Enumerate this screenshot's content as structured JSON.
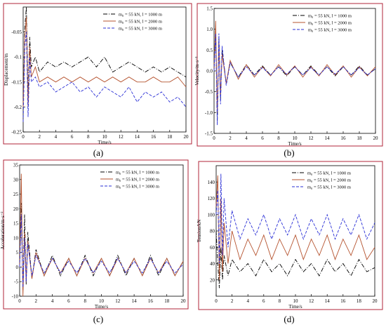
{
  "figure": {
    "panels": [
      "(a)",
      "(b)",
      "(c)",
      "(d)"
    ]
  },
  "colors": {
    "series_1000": "#000000",
    "series_2000": "#b5532f",
    "series_3000": "#2a2fd6",
    "frame": "#b0243a"
  },
  "chart_data": [
    {
      "type": "line",
      "panel": "(a)",
      "xlabel": "Time/s",
      "ylabel": "Displacement/m",
      "xlim": [
        0,
        20
      ],
      "ylim": [
        -0.25,
        0
      ],
      "xticks": [
        0,
        2,
        4,
        6,
        8,
        10,
        12,
        14,
        16,
        18,
        20
      ],
      "yticks": [
        -0.25,
        -0.2,
        -0.15,
        -0.1,
        -0.05
      ],
      "ytick_labels": [
        "-0.25",
        "-0.2",
        "-0.15",
        "-0.1",
        "-0.05"
      ],
      "legend_position": "top-right",
      "series": [
        {
          "name": "m₀ = 55 kN, l = 1000 m",
          "style": "dashdot",
          "color": "#000000",
          "x": [
            0,
            0.2,
            0.4,
            0.6,
            0.8,
            1,
            1.5,
            2,
            3,
            4,
            5,
            6,
            7,
            8,
            9,
            10,
            11,
            12,
            13,
            14,
            15,
            16,
            17,
            18,
            19,
            20
          ],
          "y": [
            -0.2,
            -0.04,
            0,
            -0.18,
            -0.06,
            -0.12,
            -0.1,
            -0.13,
            -0.11,
            -0.12,
            -0.11,
            -0.12,
            -0.11,
            -0.1,
            -0.12,
            -0.1,
            -0.13,
            -0.12,
            -0.11,
            -0.12,
            -0.13,
            -0.12,
            -0.13,
            -0.12,
            -0.13,
            -0.14
          ]
        },
        {
          "name": "m₀ = 55 kN, l = 2000 m",
          "style": "solid",
          "color": "#b5532f",
          "x": [
            0,
            0.2,
            0.4,
            0.6,
            0.8,
            1,
            1.5,
            2,
            3,
            4,
            5,
            6,
            7,
            8,
            9,
            10,
            11,
            12,
            13,
            14,
            15,
            16,
            17,
            18,
            19,
            20
          ],
          "y": [
            -0.2,
            -0.06,
            -0.02,
            -0.2,
            -0.08,
            -0.14,
            -0.12,
            -0.15,
            -0.14,
            -0.15,
            -0.14,
            -0.15,
            -0.14,
            -0.15,
            -0.14,
            -0.15,
            -0.14,
            -0.15,
            -0.14,
            -0.15,
            -0.15,
            -0.14,
            -0.15,
            -0.15,
            -0.14,
            -0.16
          ]
        },
        {
          "name": "m₀ = 55 kN, l = 3000 m",
          "style": "dashed",
          "color": "#2a2fd6",
          "x": [
            0,
            0.2,
            0.4,
            0.6,
            0.8,
            1,
            1.5,
            2,
            3,
            4,
            5,
            6,
            7,
            8,
            9,
            10,
            11,
            12,
            13,
            14,
            15,
            16,
            17,
            18,
            19,
            20
          ],
          "y": [
            -0.23,
            -0.08,
            -0.05,
            -0.22,
            -0.1,
            -0.15,
            -0.14,
            -0.16,
            -0.15,
            -0.17,
            -0.16,
            -0.15,
            -0.17,
            -0.16,
            -0.18,
            -0.16,
            -0.17,
            -0.18,
            -0.16,
            -0.19,
            -0.17,
            -0.18,
            -0.17,
            -0.19,
            -0.18,
            -0.2
          ]
        }
      ]
    },
    {
      "type": "line",
      "panel": "(b)",
      "xlabel": "Time/s",
      "ylabel": "Velocity/m·s⁻¹",
      "xlim": [
        0,
        20
      ],
      "ylim": [
        -1.5,
        1.5
      ],
      "xticks": [
        0,
        2,
        4,
        6,
        8,
        10,
        12,
        14,
        16,
        18,
        20
      ],
      "yticks": [
        -1.5,
        -1.0,
        -0.5,
        0.0,
        0.5,
        1.0,
        1.5
      ],
      "ytick_labels": [
        "-1.5",
        "-1.0",
        "-0.5",
        "0.0",
        "0.5",
        "1.0",
        "1.5"
      ],
      "legend_position": "top-right",
      "series": [
        {
          "name": "m₀ = 55 kN, l = 1000 m",
          "style": "dashdot",
          "color": "#000000",
          "x": [
            0,
            0.2,
            0.4,
            0.6,
            0.8,
            1,
            1.5,
            2,
            3,
            4,
            5,
            6,
            7,
            8,
            9,
            10,
            11,
            12,
            13,
            14,
            15,
            16,
            17,
            18,
            19,
            20
          ],
          "y": [
            0,
            1.0,
            -1.2,
            0.8,
            -0.7,
            0.5,
            -0.3,
            0.2,
            -0.15,
            0.15,
            -0.1,
            0.12,
            -0.1,
            0.1,
            -0.12,
            0.1,
            -0.1,
            0.12,
            -0.1,
            0.1,
            -0.12,
            0.1,
            -0.1,
            0.12,
            -0.1,
            0.05
          ]
        },
        {
          "name": "m₀ = 55 kN, l = 2000 m",
          "style": "solid",
          "color": "#b5532f",
          "x": [
            0,
            0.2,
            0.4,
            0.6,
            0.8,
            1,
            1.5,
            2,
            3,
            4,
            5,
            6,
            7,
            8,
            9,
            10,
            11,
            12,
            13,
            14,
            15,
            16,
            17,
            18,
            19,
            20
          ],
          "y": [
            0,
            1.2,
            -1.0,
            0.7,
            -0.6,
            0.4,
            -0.3,
            0.25,
            -0.2,
            0.15,
            -0.15,
            0.1,
            -0.12,
            0.15,
            -0.1,
            0.12,
            -0.15,
            0.1,
            -0.12,
            0.15,
            -0.1,
            0.12,
            -0.15,
            0.1,
            -0.12,
            0.1
          ]
        },
        {
          "name": "m₀ = 55 kN, l = 3000 m",
          "style": "dashed",
          "color": "#2a2fd6",
          "x": [
            0,
            0.2,
            0.4,
            0.6,
            0.8,
            1,
            1.5,
            2,
            3,
            4,
            5,
            6,
            7,
            8,
            9,
            10,
            11,
            12,
            13,
            14,
            15,
            16,
            17,
            18,
            19,
            20
          ],
          "y": [
            0,
            0.9,
            -1.3,
            0.9,
            -0.8,
            0.6,
            -0.35,
            0.2,
            -0.15,
            0.1,
            -0.1,
            0.08,
            -0.1,
            0.1,
            -0.08,
            0.1,
            -0.1,
            0.08,
            -0.1,
            0.1,
            -0.08,
            0.1,
            -0.1,
            0.08,
            -0.1,
            0.05
          ]
        }
      ]
    },
    {
      "type": "line",
      "panel": "(c)",
      "xlabel": "Time/s",
      "ylabel": "Acceleration/m·s⁻²",
      "xlim": [
        0,
        20
      ],
      "ylim": [
        -10,
        35
      ],
      "xticks": [
        0,
        2,
        4,
        6,
        8,
        10,
        12,
        14,
        16,
        18,
        20
      ],
      "yticks": [
        -10,
        -5,
        0,
        5,
        10,
        15,
        20,
        25,
        30,
        35
      ],
      "ytick_labels": [
        "-10",
        "-5",
        "0",
        "5",
        "10",
        "15",
        "20",
        "25",
        "30",
        "35"
      ],
      "legend_position": "top-right",
      "series": [
        {
          "name": "m₀ = 55 kN, l = 1000 m",
          "style": "dashdot",
          "color": "#000000",
          "x": [
            0,
            0.2,
            0.4,
            0.6,
            0.8,
            1,
            1.5,
            2,
            3,
            4,
            5,
            6,
            7,
            8,
            9,
            10,
            11,
            12,
            13,
            14,
            15,
            16,
            17,
            18,
            19,
            20
          ],
          "y": [
            0,
            22,
            -8,
            18,
            -6,
            12,
            -4,
            6,
            -3,
            4,
            -3,
            3,
            -3,
            4,
            -3,
            3,
            -3,
            4,
            -3,
            3,
            -3,
            4,
            -3,
            3,
            -3,
            2
          ]
        },
        {
          "name": "m₀ = 55 kN, l = 2000 m",
          "style": "solid",
          "color": "#b5532f",
          "x": [
            0,
            0.2,
            0.4,
            0.6,
            0.8,
            1,
            1.5,
            2,
            3,
            4,
            5,
            6,
            7,
            8,
            9,
            10,
            11,
            12,
            13,
            14,
            15,
            16,
            17,
            18,
            19,
            20
          ],
          "y": [
            0,
            32,
            -10,
            12,
            -5,
            9,
            -4,
            5,
            -3,
            3,
            -2,
            3,
            -3,
            3,
            -2,
            3,
            -3,
            3,
            -2,
            3,
            -3,
            3,
            -2,
            3,
            -3,
            2
          ]
        },
        {
          "name": "m₀ = 55 kN, l = 3000 m",
          "style": "dashed",
          "color": "#2a2fd6",
          "x": [
            0,
            0.2,
            0.4,
            0.6,
            0.8,
            1,
            1.5,
            2,
            3,
            4,
            5,
            6,
            7,
            8,
            9,
            10,
            11,
            12,
            13,
            14,
            15,
            16,
            17,
            18,
            19,
            20
          ],
          "y": [
            0,
            18,
            -7,
            10,
            -5,
            8,
            -3,
            4,
            -2,
            3,
            -2,
            2,
            -2,
            3,
            -2,
            2,
            -2,
            3,
            -2,
            2,
            -2,
            3,
            -2,
            2,
            -2,
            1
          ]
        }
      ]
    },
    {
      "type": "line",
      "panel": "(d)",
      "xlabel": "Time/s",
      "ylabel": "Tension/kN",
      "xlim": [
        0,
        20
      ],
      "ylim": [
        0,
        160
      ],
      "xticks": [
        0,
        2,
        4,
        6,
        8,
        10,
        12,
        14,
        16,
        18,
        20
      ],
      "yticks": [
        20,
        40,
        60,
        80,
        100,
        120,
        140
      ],
      "ytick_labels": [
        "20",
        "40",
        "60",
        "80",
        "100",
        "120",
        "140"
      ],
      "legend_position": "top-right",
      "series": [
        {
          "name": "m₀ = 55 kN, l = 1000 m",
          "style": "dashdot",
          "color": "#000000",
          "x": [
            0,
            0.2,
            0.4,
            0.6,
            0.8,
            1,
            1.5,
            2,
            3,
            4,
            5,
            6,
            7,
            8,
            9,
            10,
            11,
            12,
            13,
            14,
            15,
            16,
            17,
            18,
            19,
            20
          ],
          "y": [
            80,
            40,
            10,
            60,
            20,
            50,
            25,
            45,
            30,
            40,
            25,
            45,
            30,
            40,
            25,
            45,
            30,
            40,
            25,
            45,
            30,
            40,
            25,
            45,
            30,
            35
          ]
        },
        {
          "name": "m₀ = 55 kN, l = 2000 m",
          "style": "solid",
          "color": "#b5532f",
          "x": [
            0,
            0.2,
            0.4,
            0.6,
            0.8,
            1,
            1.5,
            2,
            3,
            4,
            5,
            6,
            7,
            8,
            9,
            10,
            11,
            12,
            13,
            14,
            15,
            16,
            17,
            18,
            19,
            20
          ],
          "y": [
            110,
            148,
            20,
            120,
            30,
            90,
            40,
            80,
            45,
            70,
            50,
            75,
            45,
            70,
            50,
            75,
            45,
            70,
            50,
            75,
            45,
            70,
            50,
            75,
            45,
            60
          ]
        },
        {
          "name": "m₀ = 55 kN, l = 3000 m",
          "style": "dashed",
          "color": "#2a2fd6",
          "x": [
            0,
            0.2,
            0.4,
            0.6,
            0.8,
            1,
            1.5,
            2,
            3,
            4,
            5,
            6,
            7,
            8,
            9,
            10,
            11,
            12,
            13,
            14,
            15,
            16,
            17,
            18,
            19,
            20
          ],
          "y": [
            100,
            130,
            40,
            150,
            50,
            120,
            60,
            105,
            70,
            95,
            75,
            100,
            70,
            95,
            75,
            100,
            70,
            95,
            75,
            100,
            70,
            95,
            75,
            100,
            70,
            90
          ]
        }
      ]
    }
  ]
}
